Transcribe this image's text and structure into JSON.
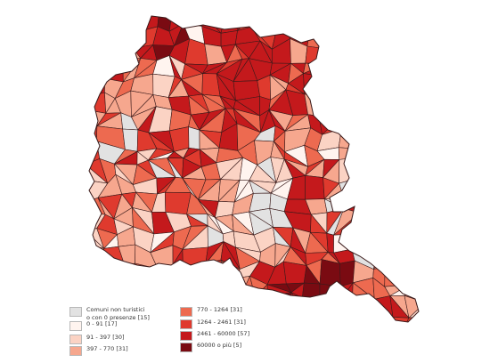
{
  "legend": {
    "items": [
      {
        "lines": [
          "Comuni non turistici",
          "o con 0 presenze [15]"
        ],
        "color": "#e2e2e2"
      },
      {
        "lines": [
          "0 - 91  [17]"
        ],
        "color": "#fff4ef"
      },
      {
        "lines": [
          "91 - 397 [30]"
        ],
        "color": "#fbd3c4"
      },
      {
        "lines": [
          "397 - 770 [31]"
        ],
        "color": "#f6a78e"
      },
      {
        "lines": [
          "770 - 1264 [31]"
        ],
        "color": "#ed6a50"
      },
      {
        "lines": [
          "1264 - 2461 [31]"
        ],
        "color": "#df3a2e"
      },
      {
        "lines": [
          "2461 - 60000 [57]"
        ],
        "color": "#c4191c"
      },
      {
        "lines": [
          "60000 o più [5]"
        ],
        "color": "#7a0b12"
      }
    ]
  },
  "map": {
    "class_colors": [
      "#e2e2e2",
      "#fff4ef",
      "#fbd3c4",
      "#f6a78e",
      "#ed6a50",
      "#df3a2e",
      "#c4191c",
      "#7a0b12"
    ],
    "border_color": "#3a1a1a"
  }
}
